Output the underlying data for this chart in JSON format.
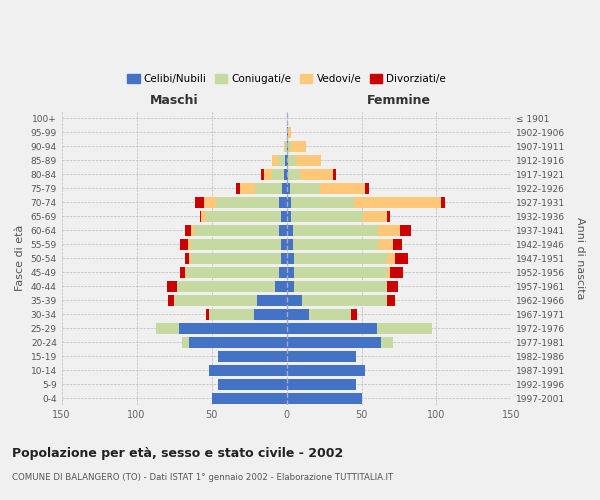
{
  "age_groups": [
    "0-4",
    "5-9",
    "10-14",
    "15-19",
    "20-24",
    "25-29",
    "30-34",
    "35-39",
    "40-44",
    "45-49",
    "50-54",
    "55-59",
    "60-64",
    "65-69",
    "70-74",
    "75-79",
    "80-84",
    "85-89",
    "90-94",
    "95-99",
    "100+"
  ],
  "birth_years": [
    "1997-2001",
    "1992-1996",
    "1987-1991",
    "1982-1986",
    "1977-1981",
    "1972-1976",
    "1967-1971",
    "1962-1966",
    "1957-1961",
    "1952-1956",
    "1947-1951",
    "1942-1946",
    "1937-1941",
    "1932-1936",
    "1927-1931",
    "1922-1926",
    "1917-1921",
    "1912-1916",
    "1907-1911",
    "1902-1906",
    "≤ 1901"
  ],
  "males_celibi": [
    50,
    46,
    52,
    46,
    65,
    72,
    22,
    20,
    8,
    5,
    4,
    4,
    5,
    4,
    5,
    3,
    2,
    1,
    0,
    0,
    0
  ],
  "males_coniugati": [
    0,
    0,
    0,
    0,
    5,
    15,
    30,
    55,
    65,
    62,
    60,
    60,
    57,
    50,
    42,
    18,
    8,
    5,
    1,
    0,
    0
  ],
  "males_vedovi": [
    0,
    0,
    0,
    0,
    0,
    0,
    0,
    0,
    0,
    1,
    1,
    2,
    2,
    3,
    8,
    10,
    5,
    4,
    1,
    0,
    0
  ],
  "males_divorziati": [
    0,
    0,
    0,
    0,
    0,
    0,
    2,
    4,
    7,
    3,
    3,
    5,
    4,
    1,
    6,
    3,
    2,
    0,
    0,
    0,
    0
  ],
  "females_nubili": [
    50,
    46,
    52,
    46,
    63,
    60,
    15,
    10,
    5,
    5,
    5,
    4,
    4,
    3,
    3,
    2,
    1,
    1,
    1,
    1,
    0
  ],
  "females_coniugate": [
    0,
    0,
    0,
    0,
    8,
    37,
    28,
    57,
    62,
    62,
    62,
    57,
    57,
    48,
    42,
    20,
    8,
    5,
    2,
    0,
    0
  ],
  "females_vedove": [
    0,
    0,
    0,
    0,
    0,
    0,
    0,
    0,
    0,
    2,
    5,
    10,
    15,
    16,
    58,
    30,
    22,
    17,
    10,
    2,
    0
  ],
  "females_divorziate": [
    0,
    0,
    0,
    0,
    0,
    0,
    4,
    5,
    7,
    9,
    9,
    6,
    7,
    2,
    3,
    3,
    2,
    0,
    0,
    0,
    0
  ],
  "colors": {
    "celibi": "#4472C4",
    "coniugati": "#c5d9a0",
    "vedovi": "#ffc878",
    "divorziati": "#cc0000"
  },
  "legend_labels": [
    "Celibi/Nubili",
    "Coniugati/e",
    "Vedovi/e",
    "Divorziati/e"
  ],
  "title": "Popolazione per età, sesso e stato civile - 2002",
  "subtitle": "COMUNE DI BALANGERO (TO) - Dati ISTAT 1° gennaio 2002 - Elaborazione TUTTITALIA.IT",
  "xlabel_left": "Maschi",
  "xlabel_right": "Femmine",
  "ylabel_left": "Fasce di età",
  "ylabel_right": "Anni di nascita",
  "xlim": 150,
  "bg_color": "#f0f0f0",
  "plot_bg": "#e8e8e8"
}
